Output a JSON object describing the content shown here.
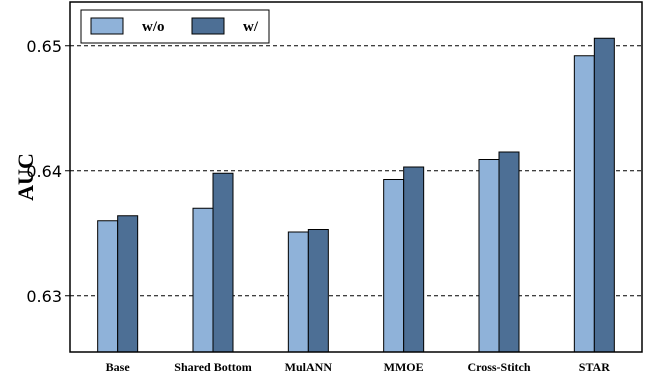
{
  "chart_data": {
    "type": "bar",
    "ylabel": "AUC",
    "xlabel": "",
    "categories": [
      "Base",
      "Shared Bottom",
      "MulANN",
      "MMOE",
      "Cross-Stitch",
      "STAR"
    ],
    "series": [
      {
        "name": "w/o",
        "color": "#8fb2d9",
        "values": [
          0.636,
          0.637,
          0.6351,
          0.6393,
          0.6409,
          0.6492
        ]
      },
      {
        "name": "w/",
        "color": "#4d6f95",
        "values": [
          0.6364,
          0.6398,
          0.6353,
          0.6403,
          0.6415,
          0.6506
        ]
      }
    ],
    "ylim": [
      0.6255,
      0.6535
    ],
    "yticks": [
      "0.63",
      "0.64",
      "0.65"
    ],
    "ytick_values": [
      0.63,
      0.64,
      0.65
    ],
    "grid": "horizontal dashed at y ticks",
    "legend_position": "top-left"
  }
}
